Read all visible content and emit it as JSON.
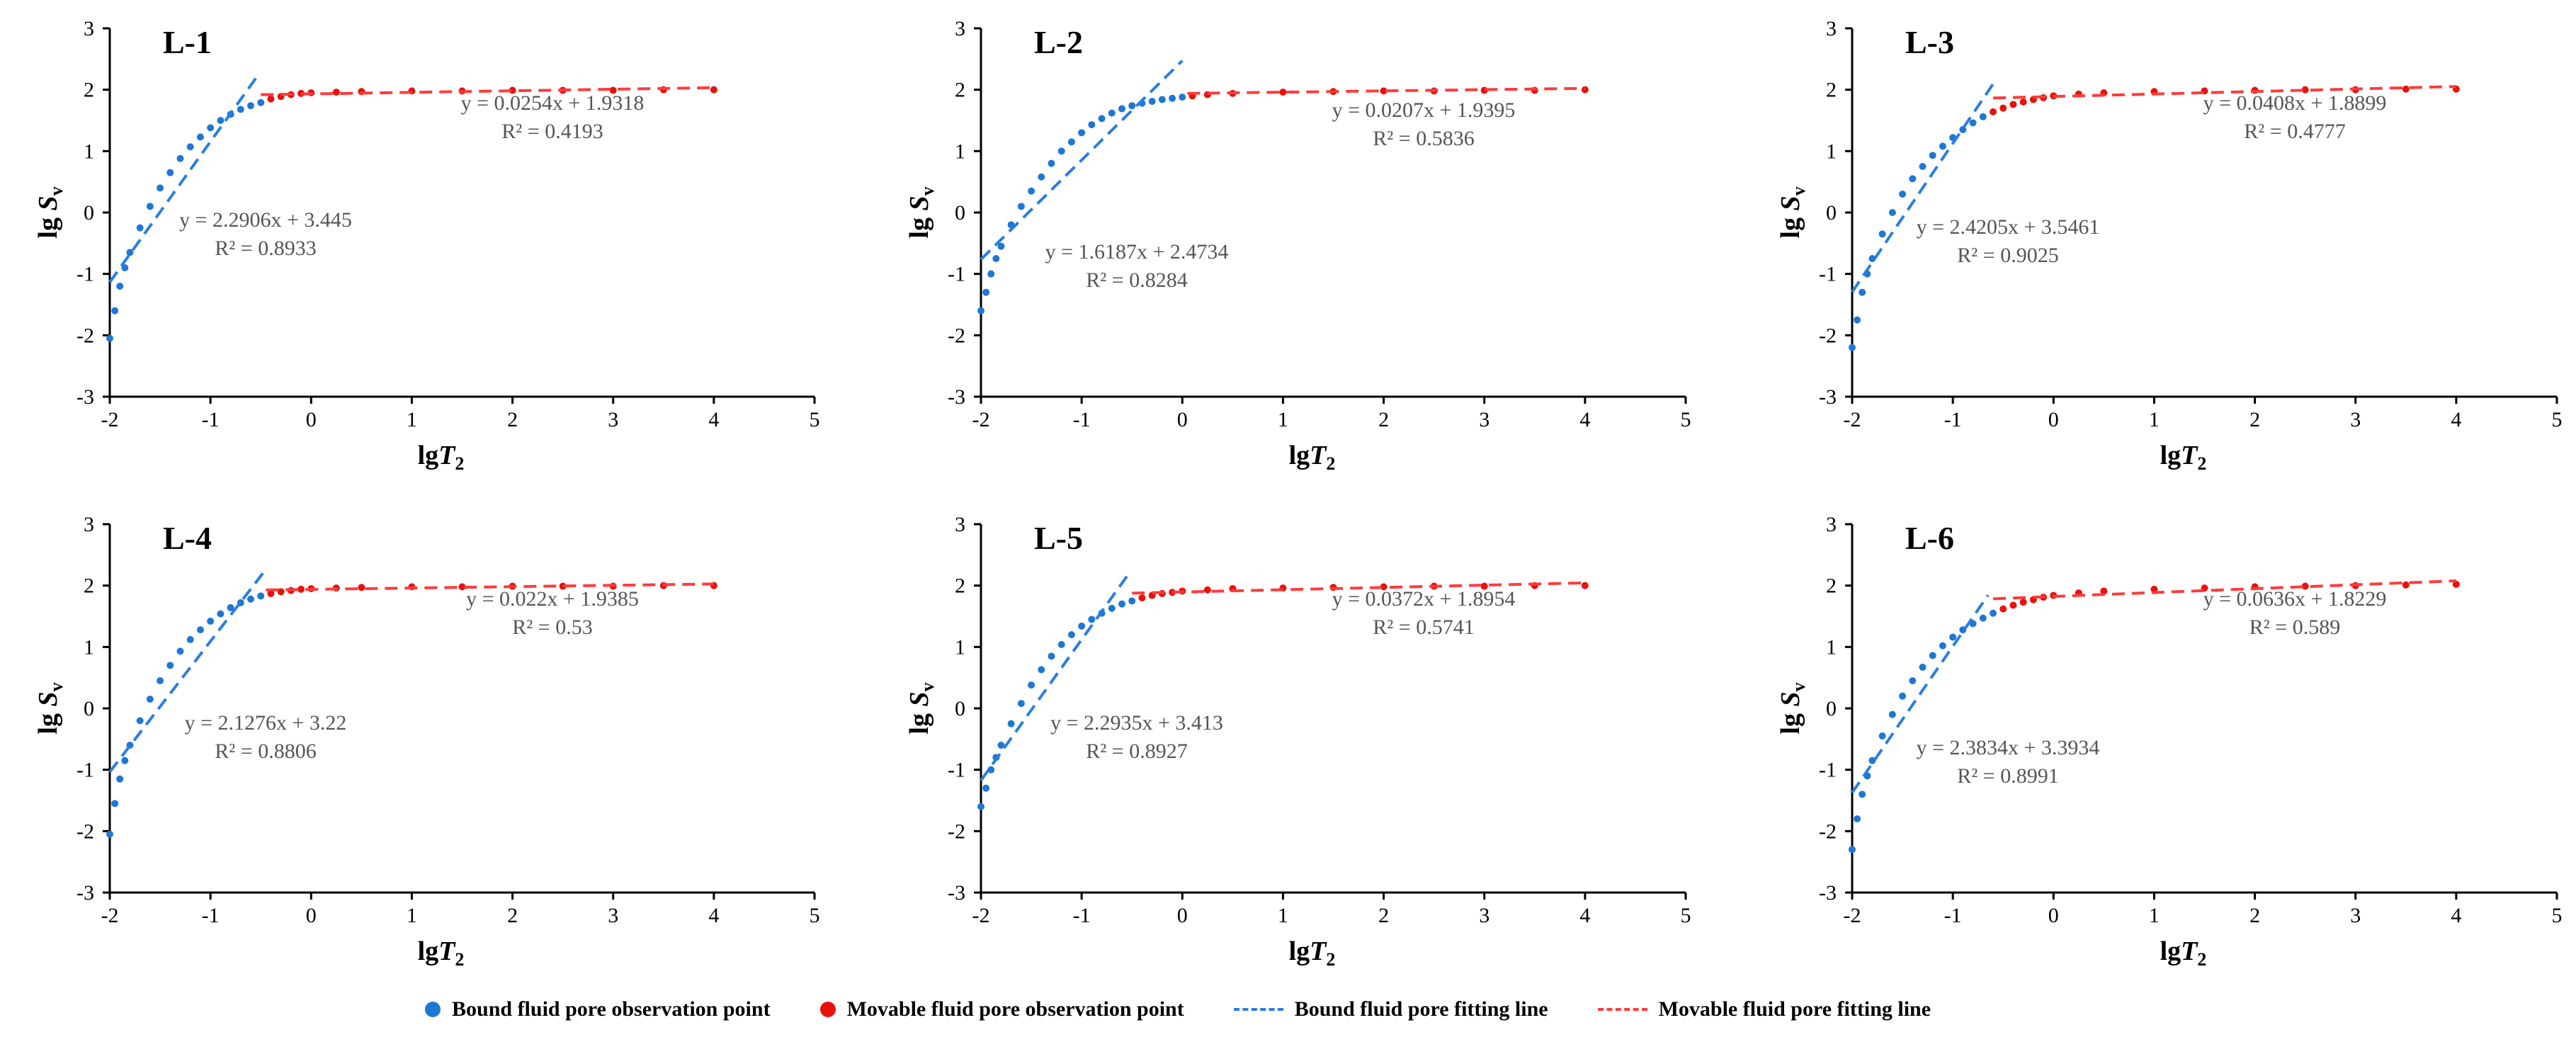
{
  "chart_data": [
    {
      "type": "scatter",
      "panel": "L-1",
      "xlabel": "lgT2",
      "ylabel": "lg Sv",
      "xlim": [
        -2,
        5
      ],
      "ylim": [
        -3,
        3
      ],
      "xticks": [
        "-2",
        "-1",
        "0",
        "1",
        "2",
        "3",
        "4",
        "5"
      ],
      "yticks": [
        "-3",
        "-2",
        "-1",
        "0",
        "1",
        "2",
        "3"
      ],
      "bound_fit": {
        "slope": 2.2906,
        "intercept": 3.445,
        "equation": "y = 2.2906x + 3.445",
        "r2": "R² = 0.8933",
        "x_range": [
          -2.0,
          -0.55
        ]
      },
      "movable_fit": {
        "slope": 0.0254,
        "intercept": 1.9318,
        "equation": "y = 0.0254x + 1.9318",
        "r2": "R² = 0.4193",
        "x_range": [
          -0.5,
          4.0
        ]
      },
      "split": -0.5,
      "series": [
        {
          "name": "Bound fluid pore observation point",
          "x": [
            -2.0,
            -1.95,
            -1.9,
            -1.85,
            -1.8,
            -1.7,
            -1.6,
            -1.5,
            -1.4,
            -1.3,
            -1.2,
            -1.1,
            -1.0,
            -0.9,
            -0.8,
            -0.7,
            -0.6,
            -0.5
          ],
          "y": [
            -2.05,
            -1.6,
            -1.2,
            -0.9,
            -0.65,
            -0.25,
            0.1,
            0.4,
            0.65,
            0.88,
            1.07,
            1.23,
            1.38,
            1.5,
            1.6,
            1.68,
            1.74,
            1.79
          ]
        },
        {
          "name": "Movable fluid pore observation point",
          "x": [
            -0.4,
            -0.3,
            -0.2,
            -0.1,
            0.0,
            0.25,
            0.5,
            1.0,
            1.5,
            2.0,
            2.5,
            3.0,
            3.5,
            4.0
          ],
          "y": [
            1.85,
            1.89,
            1.92,
            1.94,
            1.95,
            1.96,
            1.97,
            1.98,
            1.98,
            1.99,
            1.99,
            1.99,
            2.0,
            2.0
          ]
        }
      ]
    },
    {
      "type": "scatter",
      "panel": "L-2",
      "xlabel": "lgT2",
      "ylabel": "lg Sv",
      "xlim": [
        -2,
        5
      ],
      "ylim": [
        -3,
        3
      ],
      "xticks": [
        "-2",
        "-1",
        "0",
        "1",
        "2",
        "3",
        "4",
        "5"
      ],
      "yticks": [
        "-3",
        "-2",
        "-1",
        "0",
        "1",
        "2",
        "3"
      ],
      "bound_fit": {
        "slope": 1.6187,
        "intercept": 2.4734,
        "equation": "y = 1.6187x + 2.4734",
        "r2": "R² = 0.8284",
        "x_range": [
          -2.0,
          0.0
        ]
      },
      "movable_fit": {
        "slope": 0.0207,
        "intercept": 1.9395,
        "equation": "y = 0.0207x + 1.9395",
        "r2": "R² = 0.5836",
        "x_range": [
          0.05,
          4.0
        ]
      },
      "split": 0.05,
      "series": [
        {
          "name": "Bound fluid pore observation point",
          "x": [
            -2.0,
            -1.95,
            -1.9,
            -1.85,
            -1.8,
            -1.7,
            -1.6,
            -1.5,
            -1.4,
            -1.3,
            -1.2,
            -1.1,
            -1.0,
            -0.9,
            -0.8,
            -0.7,
            -0.6,
            -0.5,
            -0.4,
            -0.3,
            -0.2,
            -0.1,
            0.0
          ],
          "y": [
            -1.6,
            -1.3,
            -1.0,
            -0.75,
            -0.55,
            -0.2,
            0.1,
            0.35,
            0.58,
            0.8,
            1.0,
            1.15,
            1.3,
            1.43,
            1.53,
            1.62,
            1.69,
            1.74,
            1.78,
            1.81,
            1.84,
            1.86,
            1.88
          ]
        },
        {
          "name": "Movable fluid pore observation point",
          "x": [
            0.1,
            0.25,
            0.5,
            1.0,
            1.5,
            2.0,
            2.5,
            3.0,
            3.5,
            4.0
          ],
          "y": [
            1.9,
            1.92,
            1.94,
            1.96,
            1.97,
            1.98,
            1.98,
            1.99,
            1.99,
            2.0
          ]
        }
      ]
    },
    {
      "type": "scatter",
      "panel": "L-3",
      "xlabel": "lgT2",
      "ylabel": "lg Sv",
      "xlim": [
        -2,
        5
      ],
      "ylim": [
        -3,
        3
      ],
      "xticks": [
        "-2",
        "-1",
        "0",
        "1",
        "2",
        "3",
        "4",
        "5"
      ],
      "yticks": [
        "-3",
        "-2",
        "-1",
        "0",
        "1",
        "2",
        "3"
      ],
      "bound_fit": {
        "slope": 2.4205,
        "intercept": 3.5461,
        "equation": "y = 2.4205x + 3.5461",
        "r2": "R² = 0.9025",
        "x_range": [
          -2.0,
          -0.6
        ]
      },
      "movable_fit": {
        "slope": 0.0408,
        "intercept": 1.8899,
        "equation": "y = 0.0408x + 1.8899",
        "r2": "R² = 0.4777",
        "x_range": [
          -0.6,
          4.0
        ]
      },
      "split": -0.65,
      "series": [
        {
          "name": "Bound fluid pore observation point",
          "x": [
            -2.0,
            -1.95,
            -1.9,
            -1.85,
            -1.8,
            -1.7,
            -1.6,
            -1.5,
            -1.4,
            -1.3,
            -1.2,
            -1.1,
            -1.0,
            -0.9,
            -0.8,
            -0.7
          ],
          "y": [
            -2.2,
            -1.75,
            -1.3,
            -1.0,
            -0.75,
            -0.35,
            0.0,
            0.3,
            0.55,
            0.75,
            0.93,
            1.08,
            1.22,
            1.35,
            1.46,
            1.56
          ]
        },
        {
          "name": "Movable fluid pore observation point",
          "x": [
            -0.6,
            -0.5,
            -0.4,
            -0.3,
            -0.2,
            -0.1,
            0.0,
            0.25,
            0.5,
            1.0,
            1.5,
            2.0,
            2.5,
            3.0,
            3.5,
            4.0
          ],
          "y": [
            1.64,
            1.7,
            1.76,
            1.8,
            1.84,
            1.87,
            1.9,
            1.93,
            1.95,
            1.97,
            1.98,
            1.99,
            2.0,
            2.0,
            2.01,
            2.01
          ]
        }
      ]
    },
    {
      "type": "scatter",
      "panel": "L-4",
      "xlabel": "lgT2",
      "ylabel": "lg Sv",
      "xlim": [
        -2,
        5
      ],
      "ylim": [
        -3,
        3
      ],
      "xticks": [
        "-2",
        "-1",
        "0",
        "1",
        "2",
        "3",
        "4",
        "5"
      ],
      "yticks": [
        "-3",
        "-2",
        "-1",
        "0",
        "1",
        "2",
        "3"
      ],
      "bound_fit": {
        "slope": 2.1276,
        "intercept": 3.22,
        "equation": "y = 2.1276x + 3.22",
        "r2": "R² = 0.8806",
        "x_range": [
          -2.0,
          -0.45
        ]
      },
      "movable_fit": {
        "slope": 0.022,
        "intercept": 1.9385,
        "equation": "y = 0.022x + 1.9385",
        "r2": "R² = 0.53",
        "x_range": [
          -0.45,
          4.0
        ]
      },
      "split": -0.45,
      "series": [
        {
          "name": "Bound fluid pore observation point",
          "x": [
            -2.0,
            -1.95,
            -1.9,
            -1.85,
            -1.8,
            -1.7,
            -1.6,
            -1.5,
            -1.4,
            -1.3,
            -1.2,
            -1.1,
            -1.0,
            -0.9,
            -0.8,
            -0.7,
            -0.6,
            -0.5
          ],
          "y": [
            -2.05,
            -1.55,
            -1.15,
            -0.85,
            -0.6,
            -0.2,
            0.15,
            0.45,
            0.7,
            0.93,
            1.12,
            1.28,
            1.42,
            1.54,
            1.64,
            1.72,
            1.78,
            1.83
          ]
        },
        {
          "name": "Movable fluid pore observation point",
          "x": [
            -0.4,
            -0.3,
            -0.2,
            -0.1,
            0.0,
            0.25,
            0.5,
            1.0,
            1.5,
            2.0,
            2.5,
            3.0,
            3.5,
            4.0
          ],
          "y": [
            1.87,
            1.9,
            1.92,
            1.94,
            1.95,
            1.96,
            1.97,
            1.98,
            1.98,
            1.99,
            1.99,
            1.99,
            2.0,
            2.0
          ]
        }
      ]
    },
    {
      "type": "scatter",
      "panel": "L-5",
      "xlabel": "lgT2",
      "ylabel": "lg Sv",
      "xlim": [
        -2,
        5
      ],
      "ylim": [
        -3,
        3
      ],
      "xticks": [
        "-2",
        "-1",
        "0",
        "1",
        "2",
        "3",
        "4",
        "5"
      ],
      "yticks": [
        "-3",
        "-2",
        "-1",
        "0",
        "1",
        "2",
        "3"
      ],
      "bound_fit": {
        "slope": 2.2935,
        "intercept": 3.413,
        "equation": "y = 2.2935x + 3.413",
        "r2": "R² = 0.8927",
        "x_range": [
          -2.0,
          -0.55
        ]
      },
      "movable_fit": {
        "slope": 0.0372,
        "intercept": 1.8954,
        "equation": "y = 0.0372x + 1.8954",
        "r2": "R² = 0.5741",
        "x_range": [
          -0.5,
          4.0
        ]
      },
      "split": -0.45,
      "series": [
        {
          "name": "Bound fluid pore observation point",
          "x": [
            -2.0,
            -1.95,
            -1.9,
            -1.85,
            -1.8,
            -1.7,
            -1.6,
            -1.5,
            -1.4,
            -1.3,
            -1.2,
            -1.1,
            -1.0,
            -0.9,
            -0.8,
            -0.7,
            -0.6,
            -0.5
          ],
          "y": [
            -1.6,
            -1.3,
            -1.0,
            -0.8,
            -0.6,
            -0.25,
            0.08,
            0.38,
            0.63,
            0.85,
            1.04,
            1.2,
            1.34,
            1.45,
            1.55,
            1.63,
            1.7,
            1.75
          ]
        },
        {
          "name": "Movable fluid pore observation point",
          "x": [
            -0.4,
            -0.3,
            -0.2,
            -0.1,
            0.0,
            0.25,
            0.5,
            1.0,
            1.5,
            2.0,
            2.5,
            3.0,
            3.5,
            4.0
          ],
          "y": [
            1.8,
            1.84,
            1.87,
            1.89,
            1.91,
            1.93,
            1.95,
            1.96,
            1.97,
            1.98,
            1.99,
            1.99,
            2.0,
            2.0
          ]
        }
      ]
    },
    {
      "type": "scatter",
      "panel": "L-6",
      "xlabel": "lgT2",
      "ylabel": "lg Sv",
      "xlim": [
        -2,
        5
      ],
      "ylim": [
        -3,
        3
      ],
      "xticks": [
        "-2",
        "-1",
        "0",
        "1",
        "2",
        "3",
        "4",
        "5"
      ],
      "yticks": [
        "-3",
        "-2",
        "-1",
        "0",
        "1",
        "2",
        "3"
      ],
      "bound_fit": {
        "slope": 2.3834,
        "intercept": 3.3934,
        "equation": "y = 2.3834x + 3.3934",
        "r2": "R² = 0.8991",
        "x_range": [
          -2.0,
          -0.65
        ]
      },
      "movable_fit": {
        "slope": 0.0636,
        "intercept": 1.8229,
        "equation": "y = 0.0636x + 1.8229",
        "r2": "R² = 0.589",
        "x_range": [
          -0.6,
          4.0
        ]
      },
      "split": -0.55,
      "series": [
        {
          "name": "Bound fluid pore observation point",
          "x": [
            -2.0,
            -1.95,
            -1.9,
            -1.85,
            -1.8,
            -1.7,
            -1.6,
            -1.5,
            -1.4,
            -1.3,
            -1.2,
            -1.1,
            -1.0,
            -0.9,
            -0.8,
            -0.7,
            -0.6
          ],
          "y": [
            -2.3,
            -1.8,
            -1.4,
            -1.1,
            -0.85,
            -0.45,
            -0.1,
            0.2,
            0.45,
            0.67,
            0.86,
            1.02,
            1.16,
            1.28,
            1.38,
            1.47,
            1.55
          ]
        },
        {
          "name": "Movable fluid pore observation point",
          "x": [
            -0.5,
            -0.4,
            -0.3,
            -0.2,
            -0.1,
            0.0,
            0.25,
            0.5,
            1.0,
            1.5,
            2.0,
            2.5,
            3.0,
            3.5,
            4.0
          ],
          "y": [
            1.62,
            1.68,
            1.73,
            1.77,
            1.81,
            1.84,
            1.88,
            1.91,
            1.94,
            1.96,
            1.98,
            1.99,
            2.0,
            2.01,
            2.02
          ]
        }
      ]
    }
  ],
  "legend": {
    "bound_point": "Bound fluid pore observation point",
    "movable_point": "Movable fluid pore observation point",
    "bound_line": "Bound fluid pore fitting line",
    "movable_line": "Movable fluid pore fitting line"
  },
  "colors": {
    "bound": "#1f77d4",
    "movable": "#e8120c",
    "bound_line": "#2a7ee0",
    "movable_line": "#ff3b3b",
    "axis": "#000000",
    "annotation": "#555555"
  }
}
